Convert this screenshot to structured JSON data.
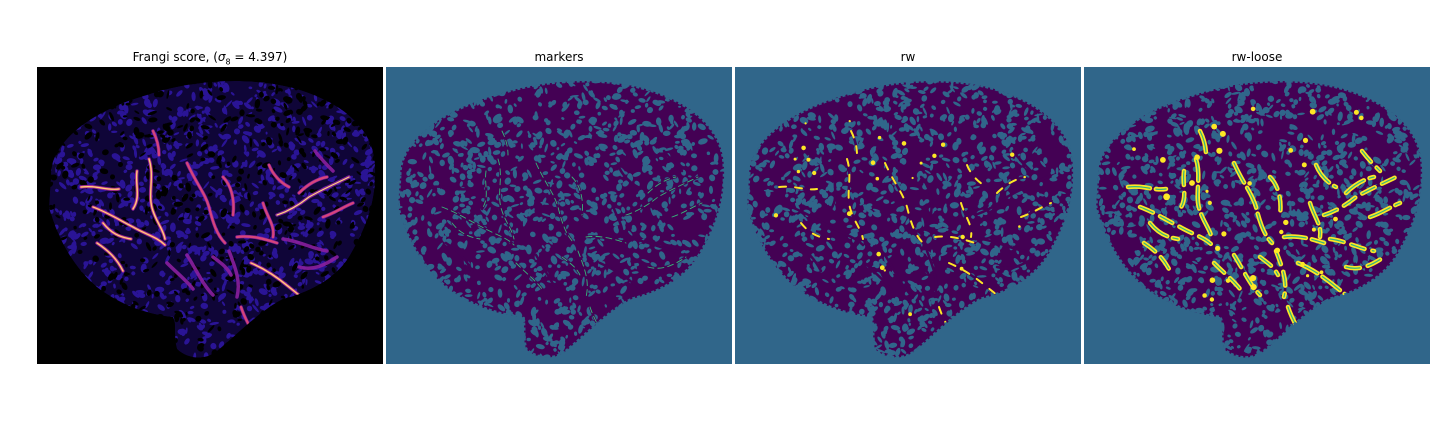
{
  "figure": {
    "panels": [
      {
        "title_main": "Frangi score, (",
        "title_sigma": "σ",
        "title_sub": "8",
        "title_rest": " = 4.397)",
        "style": "frangi"
      },
      {
        "title": "markers",
        "style": "markers"
      },
      {
        "title": "rw",
        "style": "rw"
      },
      {
        "title": "rw-loose",
        "style": "rwloose"
      }
    ]
  },
  "colors": {
    "frangi_background": "#000000",
    "frangi_texture": "#2a1496",
    "frangi_vessel_dim": "#8a1f9e",
    "frangi_vessel_mid": "#d6457a",
    "frangi_vessel_bright": "#ffd27a",
    "segmentation_background": "#30668a",
    "tissue": "#440154",
    "marker": "#35b779",
    "vessel_highlight": "#fde725"
  }
}
